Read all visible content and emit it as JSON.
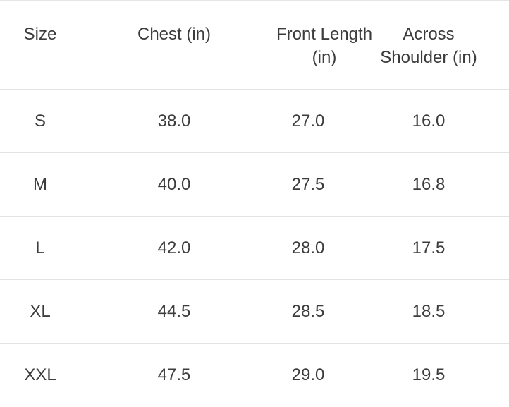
{
  "table": {
    "headers": [
      "Size",
      "Chest (in)",
      "Front Length (in)",
      "Across Shoulder (in)"
    ],
    "rows": [
      [
        "S",
        "38.0",
        "27.0",
        "16.0"
      ],
      [
        "M",
        "40.0",
        "27.5",
        "16.8"
      ],
      [
        "L",
        "42.0",
        "28.0",
        "17.5"
      ],
      [
        "XL",
        "44.5",
        "28.5",
        "18.5"
      ],
      [
        "XXL",
        "47.5",
        "29.0",
        "19.5"
      ]
    ]
  }
}
